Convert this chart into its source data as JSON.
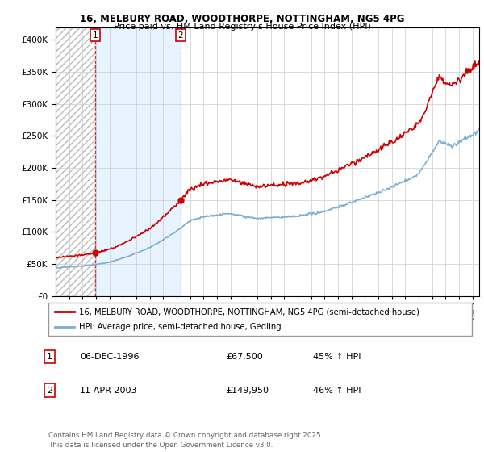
{
  "title_line1": "16, MELBURY ROAD, WOODTHORPE, NOTTINGHAM, NG5 4PG",
  "title_line2": "Price paid vs. HM Land Registry's House Price Index (HPI)",
  "xlim_start": 1994.0,
  "xlim_end": 2025.5,
  "ylim_min": 0,
  "ylim_max": 420000,
  "yticks": [
    0,
    50000,
    100000,
    150000,
    200000,
    250000,
    300000,
    350000,
    400000
  ],
  "ytick_labels": [
    "£0",
    "£50K",
    "£100K",
    "£150K",
    "£200K",
    "£250K",
    "£300K",
    "£350K",
    "£400K"
  ],
  "property_color": "#cc0000",
  "hpi_color": "#7aadd4",
  "property_label": "16, MELBURY ROAD, WOODTHORPE, NOTTINGHAM, NG5 4PG (semi-detached house)",
  "hpi_label": "HPI: Average price, semi-detached house, Gedling",
  "sale1_date": 1996.93,
  "sale1_price": 67500,
  "sale2_date": 2003.28,
  "sale2_price": 149950,
  "table_rows": [
    [
      "1",
      "06-DEC-1996",
      "£67,500",
      "45% ↑ HPI"
    ],
    [
      "2",
      "11-APR-2003",
      "£149,950",
      "46% ↑ HPI"
    ]
  ],
  "footnote": "Contains HM Land Registry data © Crown copyright and database right 2025.\nThis data is licensed under the Open Government Licence v3.0.",
  "grid_color": "#cccccc",
  "hatch_color": "#dddddd",
  "shade_color": "#ddeeff"
}
